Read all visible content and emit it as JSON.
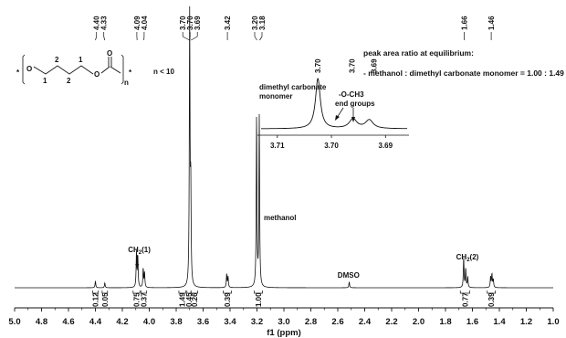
{
  "chart_data": {
    "type": "line",
    "title": "",
    "xlabel": "f1 (ppm)",
    "ylabel": "",
    "xlim": [
      5.0,
      1.0
    ],
    "x_reversed": true,
    "grid": false,
    "x_ticks": [
      "5.0",
      "4.8",
      "4.6",
      "4.4",
      "4.2",
      "4.0",
      "3.8",
      "3.6",
      "3.4",
      "3.2",
      "3.0",
      "2.8",
      "2.6",
      "2.4",
      "2.2",
      "2.0",
      "1.8",
      "1.6",
      "1.4",
      "1.2",
      "1.0"
    ],
    "peak_labels": [
      {
        "ppm": 4.4,
        "text": "4.40"
      },
      {
        "ppm": 4.33,
        "text": "4.33"
      },
      {
        "ppm": 4.09,
        "text": "4.09"
      },
      {
        "ppm": 4.04,
        "text": "4.04"
      },
      {
        "ppm": 3.7,
        "text": "3.70"
      },
      {
        "ppm": 3.7,
        "text": "3.70"
      },
      {
        "ppm": 3.69,
        "text": "3.69"
      },
      {
        "ppm": 3.42,
        "text": "3.42"
      },
      {
        "ppm": 3.2,
        "text": "3.20"
      },
      {
        "ppm": 3.18,
        "text": "3.18"
      },
      {
        "ppm": 1.66,
        "text": "1.66"
      },
      {
        "ppm": 1.46,
        "text": "1.46"
      }
    ],
    "peaks": [
      {
        "ppm": 4.4,
        "height": 0.025
      },
      {
        "ppm": 4.33,
        "height": 0.018
      },
      {
        "ppm": 4.095,
        "height": 0.13
      },
      {
        "ppm": 4.085,
        "height": 0.11
      },
      {
        "ppm": 4.045,
        "height": 0.07
      },
      {
        "ppm": 4.035,
        "height": 0.055
      },
      {
        "ppm": 3.7,
        "height": 1.0
      },
      {
        "ppm": 3.692,
        "height": 0.35
      },
      {
        "ppm": 3.425,
        "height": 0.05
      },
      {
        "ppm": 3.415,
        "height": 0.04
      },
      {
        "ppm": 3.203,
        "height": 0.63
      },
      {
        "ppm": 3.183,
        "height": 0.63
      },
      {
        "ppm": 2.515,
        "height": 0.022
      },
      {
        "ppm": 1.665,
        "height": 0.11
      },
      {
        "ppm": 1.65,
        "height": 0.07
      },
      {
        "ppm": 1.635,
        "height": 0.04
      },
      {
        "ppm": 1.465,
        "height": 0.04
      },
      {
        "ppm": 1.455,
        "height": 0.05
      },
      {
        "ppm": 1.445,
        "height": 0.03
      }
    ],
    "integrals": [
      {
        "from": 4.42,
        "to": 4.38,
        "value": "0.12"
      },
      {
        "from": 4.35,
        "to": 4.31,
        "value": "0.05"
      },
      {
        "from": 4.12,
        "to": 4.07,
        "value": "0.75"
      },
      {
        "from": 4.06,
        "to": 4.02,
        "value": "0.37"
      },
      {
        "from": 3.78,
        "to": 3.73,
        "value": "1.49"
      },
      {
        "from": 3.72,
        "to": 3.69,
        "value": "0.45"
      },
      {
        "from": 3.69,
        "to": 3.64,
        "value": "0.26"
      },
      {
        "from": 3.45,
        "to": 3.39,
        "value": "0.39"
      },
      {
        "from": 3.22,
        "to": 3.16,
        "value": "1.00"
      },
      {
        "from": 1.69,
        "to": 1.62,
        "value": "0.77"
      },
      {
        "from": 1.49,
        "to": 1.43,
        "value": "0.39"
      }
    ],
    "annotations": [
      {
        "ppm": 4.09,
        "text_parts": [
          "CH",
          "2",
          "(1)"
        ]
      },
      {
        "ppm": 3.19,
        "text_parts": [
          "methanol"
        ]
      },
      {
        "ppm": 2.52,
        "text_parts": [
          "DMSO"
        ]
      },
      {
        "ppm": 1.66,
        "text_parts": [
          "CH",
          "2",
          "(2)"
        ]
      }
    ],
    "inset": {
      "xlim": [
        3.713,
        3.686
      ],
      "x_ticks": [
        "3.71",
        "3.70",
        "3.69"
      ],
      "peak_labels": [
        {
          "ppm": 3.7025,
          "text": "3.70"
        },
        {
          "ppm": 3.696,
          "text": "3.70"
        },
        {
          "ppm": 3.693,
          "text": "3.69"
        }
      ],
      "peaks": [
        {
          "ppm": 3.7025,
          "height": 1.0
        },
        {
          "ppm": 3.696,
          "height": 0.19
        },
        {
          "ppm": 3.693,
          "height": 0.17
        }
      ],
      "annotations": [
        {
          "lines": [
            "dimethyl carbonate",
            "monomer"
          ]
        },
        {
          "lines": [
            "-O-CH3",
            "end groups"
          ]
        }
      ]
    }
  },
  "equilibrium_note": {
    "title": "peak area ratio at equilibrium:",
    "text": "- methanol : dimethyl carbonate monomer = 1.00 : 1.49"
  },
  "structure": {
    "labels": [
      "*",
      "O",
      "1",
      "2",
      "2",
      "1",
      "O",
      "O",
      "n",
      "*"
    ],
    "condition": "n < 10"
  },
  "colors": {
    "ink": "#111111",
    "background": "#ffffff"
  }
}
